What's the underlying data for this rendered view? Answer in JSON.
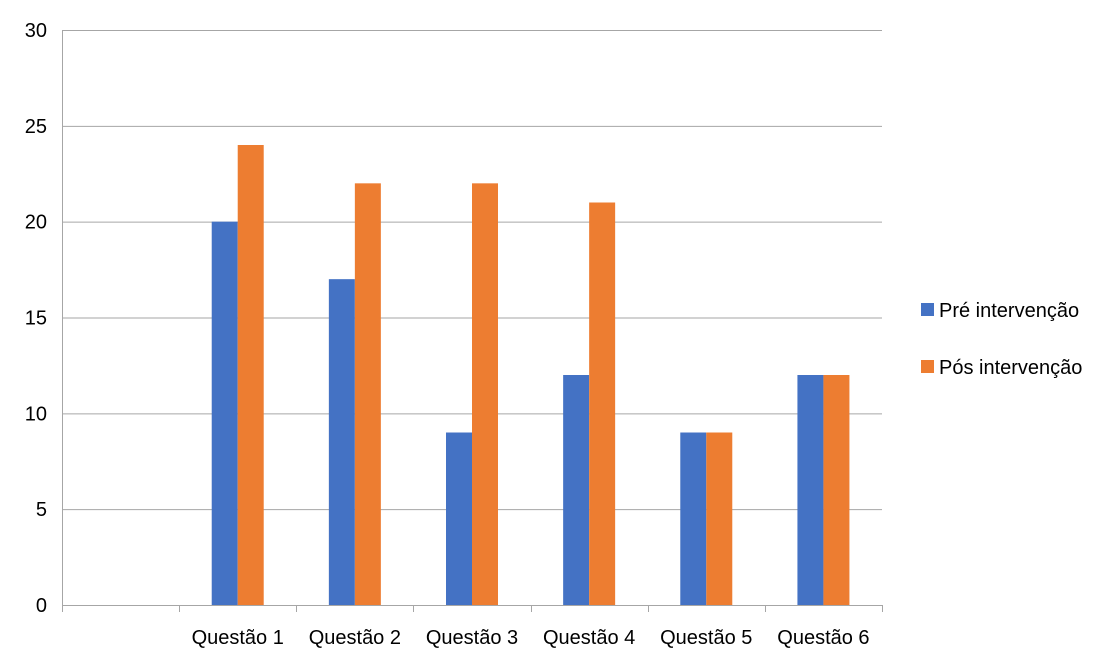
{
  "chart_data": {
    "type": "bar",
    "categories": [
      "",
      "Questão 1",
      "Questão 2",
      "Questão 3",
      "Questão 4",
      "Questão 5",
      "Questão 6"
    ],
    "series": [
      {
        "name": "Pré intervenção",
        "color": "#4472C4",
        "values": [
          null,
          20,
          17,
          9,
          12,
          9,
          12
        ]
      },
      {
        "name": "Pós intervenção",
        "color": "#ED7D31",
        "values": [
          null,
          24,
          22,
          22,
          21,
          9,
          12
        ]
      }
    ],
    "ylim": [
      0,
      30
    ],
    "yticks": [
      0,
      5,
      10,
      15,
      20,
      25,
      30
    ],
    "grid": true,
    "legend_position": "right",
    "title": "",
    "xlabel": "",
    "ylabel": ""
  }
}
